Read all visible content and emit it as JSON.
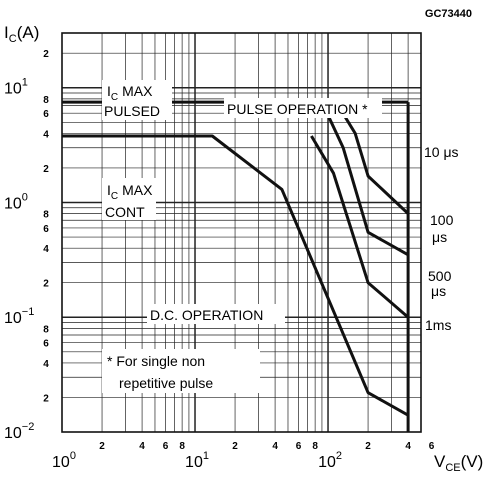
{
  "figure_code": "GC73440",
  "chart_data": {
    "type": "line",
    "title": "",
    "xlabel": "V_CE (V)",
    "ylabel": "I_C (A)",
    "x_scale": "log",
    "y_scale": "log",
    "xlim": [
      1,
      500
    ],
    "ylim": [
      0.01,
      30
    ],
    "grid": true,
    "x_major_ticks": [
      {
        "value": 1,
        "base": "10",
        "exp": "0"
      },
      {
        "value": 10,
        "base": "10",
        "exp": "1"
      },
      {
        "value": 100,
        "base": "10",
        "exp": "2"
      }
    ],
    "x_minor_ticks": [
      {
        "value": 2,
        "label": "2"
      },
      {
        "value": 4,
        "label": "4"
      },
      {
        "value": 6,
        "label": "6"
      },
      {
        "value": 8,
        "label": "8"
      },
      {
        "value": 20,
        "label": "2"
      },
      {
        "value": 40,
        "label": "4"
      },
      {
        "value": 60,
        "label": "6"
      },
      {
        "value": 80,
        "label": "8"
      },
      {
        "value": 200,
        "label": "2"
      },
      {
        "value": 400,
        "label": "4"
      },
      {
        "value": 600,
        "label": "6"
      }
    ],
    "y_major_ticks": [
      {
        "value": 10,
        "base": "10",
        "exp": "1"
      },
      {
        "value": 1,
        "base": "10",
        "exp": "0"
      },
      {
        "value": 0.1,
        "base": "10",
        "exp": "−1"
      },
      {
        "value": 0.01,
        "base": "10",
        "exp": "−2"
      }
    ],
    "y_minor_ticks": [
      {
        "value": 20,
        "label": "2"
      },
      {
        "value": 4,
        "label": "4"
      },
      {
        "value": 6,
        "label": "6"
      },
      {
        "value": 8,
        "label": "8"
      },
      {
        "value": 2,
        "label": "2"
      },
      {
        "value": 0.4,
        "label": "4"
      },
      {
        "value": 0.6,
        "label": "6"
      },
      {
        "value": 0.8,
        "label": "8"
      },
      {
        "value": 0.2,
        "label": "2"
      },
      {
        "value": 0.04,
        "label": "4"
      },
      {
        "value": 0.06,
        "label": "6"
      },
      {
        "value": 0.08,
        "label": "8"
      },
      {
        "value": 0.02,
        "label": "2"
      }
    ],
    "series": [
      {
        "name": "DC",
        "points": [
          [
            1,
            3.8
          ],
          [
            13.5,
            3.8
          ],
          [
            45,
            1.3
          ],
          [
            200,
            0.022
          ],
          [
            400,
            0.014
          ]
        ]
      },
      {
        "name": "1ms",
        "points": [
          [
            75,
            3.8
          ],
          [
            110,
            1.8
          ],
          [
            200,
            0.2
          ],
          [
            400,
            0.1
          ]
        ]
      },
      {
        "name": "500μs",
        "points": [
          [
            90,
            7.5
          ],
          [
            130,
            3.0
          ],
          [
            200,
            0.55
          ],
          [
            400,
            0.35
          ]
        ]
      },
      {
        "name": "100μs",
        "points": [
          [
            115,
            7.5
          ],
          [
            160,
            4.0
          ],
          [
            200,
            1.7
          ],
          [
            400,
            0.8
          ]
        ]
      },
      {
        "name": "PULSED",
        "points": [
          [
            1,
            7.5
          ],
          [
            400,
            7.5
          ]
        ]
      },
      {
        "name": "10μs",
        "points": [
          [
            400,
            7.5
          ],
          [
            400,
            0.01
          ]
        ]
      }
    ],
    "annotations": {
      "ic_max_pulsed_1": "MAX",
      "ic_max_pulsed_2": "PULSED",
      "ic_max_cont_1": "MAX",
      "ic_max_cont_2": "CONT",
      "ic_symbol": "I",
      "ic_sub": "C",
      "pulse_operation": "PULSE OPERATION *",
      "dc_operation": "D.C. OPERATION",
      "footnote_1": "* For single non",
      "footnote_2": "repetitive pulse"
    },
    "line_labels": {
      "l10us": "10 μs",
      "l100us_1": "100",
      "l100us_2": "μs",
      "l500us_1": "500",
      "l500us_2": "μs",
      "l1ms": "1ms"
    },
    "axis_title_parts": {
      "y_main": "I",
      "y_sub": "C",
      "y_unit": "(A)",
      "x_main": "V",
      "x_sub": "CE",
      "x_unit": "(V)"
    }
  }
}
